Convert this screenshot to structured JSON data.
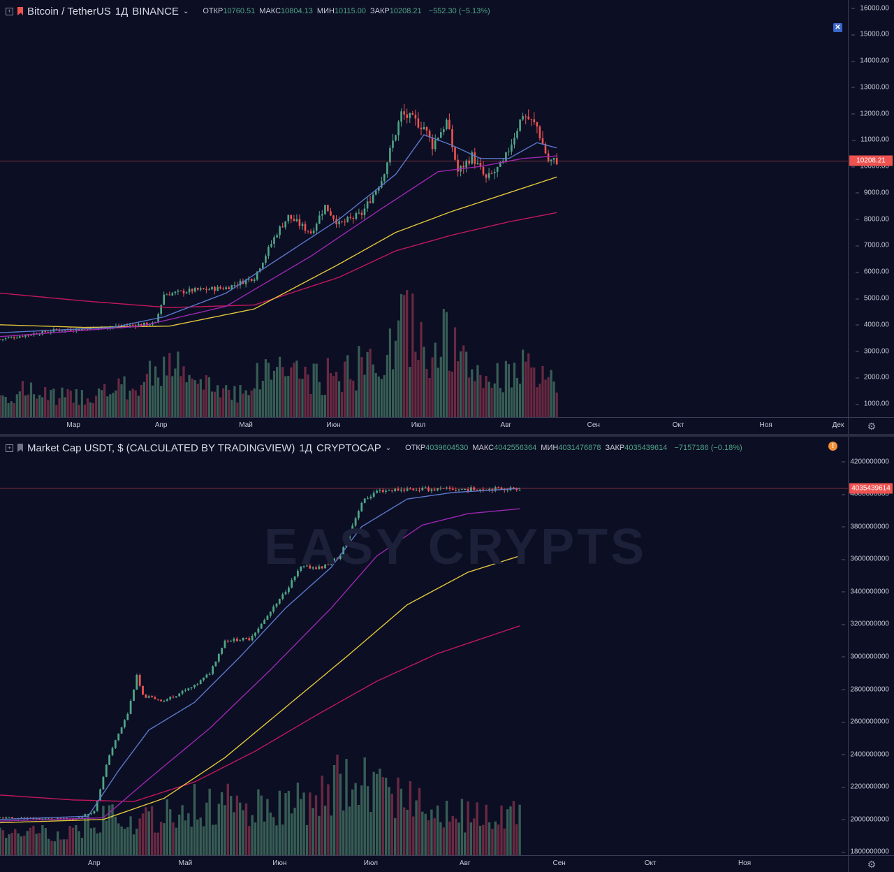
{
  "watermark": "EASY CRYPTS",
  "chart_data": [
    {
      "type": "candlestick",
      "title": "Bitcoin / TetherUS",
      "interval": "1Д",
      "exchange": "BINANCE",
      "ohlc": {
        "open_label": "ОТКР",
        "open": "10760.51",
        "high_label": "МАКС",
        "high": "10804.13",
        "low_label": "МИН",
        "low": "10115.00",
        "close_label": "ЗАКР",
        "close": "10208.21",
        "change": "−552.30 (−5.13%)"
      },
      "last_price": "10208.21",
      "ylim": [
        500,
        16200
      ],
      "yticks": [
        "16000.00",
        "15000.00",
        "14000.00",
        "13000.00",
        "12000.00",
        "11000.00",
        "10000.00",
        "9000.00",
        "8000.00",
        "7000.00",
        "6000.00",
        "5000.00",
        "4000.00",
        "3000.00",
        "2000.00",
        "1000.00"
      ],
      "ytick_values": [
        16000,
        15000,
        14000,
        13000,
        12000,
        11000,
        10000,
        9000,
        8000,
        7000,
        6000,
        5000,
        4000,
        3000,
        2000,
        1000
      ],
      "xticks": [
        "Мар",
        "Апр",
        "Май",
        "Июн",
        "Июл",
        "Авг",
        "Сен",
        "Окт",
        "Ноя",
        "Дек"
      ],
      "x_range_days": [
        0,
        300
      ],
      "xtick_days": [
        26,
        57,
        87,
        118,
        148,
        179,
        210,
        240,
        271,
        301
      ],
      "last_day": 197,
      "price_keypoints": [
        [
          0,
          3450
        ],
        [
          20,
          3800
        ],
        [
          30,
          3850
        ],
        [
          55,
          4050
        ],
        [
          58,
          5150
        ],
        [
          68,
          5300
        ],
        [
          80,
          5400
        ],
        [
          90,
          5800
        ],
        [
          98,
          7500
        ],
        [
          102,
          8100
        ],
        [
          110,
          7500
        ],
        [
          115,
          8500
        ],
        [
          120,
          7800
        ],
        [
          128,
          8200
        ],
        [
          135,
          9500
        ],
        [
          142,
          12000
        ],
        [
          147,
          11700
        ],
        [
          150,
          11500
        ],
        [
          153,
          10800
        ],
        [
          158,
          11700
        ],
        [
          162,
          9800
        ],
        [
          167,
          10400
        ],
        [
          172,
          9500
        ],
        [
          178,
          10100
        ],
        [
          185,
          12000
        ],
        [
          190,
          11500
        ],
        [
          194,
          10200
        ],
        [
          197,
          10208
        ]
      ],
      "ma_fast": [
        [
          0,
          3700
        ],
        [
          40,
          3900
        ],
        [
          58,
          4300
        ],
        [
          80,
          5200
        ],
        [
          100,
          6600
        ],
        [
          120,
          8000
        ],
        [
          140,
          9700
        ],
        [
          150,
          11200
        ],
        [
          160,
          10800
        ],
        [
          170,
          10300
        ],
        [
          180,
          10300
        ],
        [
          190,
          10900
        ],
        [
          197,
          10700
        ]
      ],
      "ma_mid": [
        [
          0,
          3550
        ],
        [
          50,
          3950
        ],
        [
          80,
          4700
        ],
        [
          110,
          6600
        ],
        [
          135,
          8400
        ],
        [
          155,
          9800
        ],
        [
          170,
          10000
        ],
        [
          185,
          10300
        ],
        [
          197,
          10400
        ]
      ],
      "ma_slow": [
        [
          0,
          4000
        ],
        [
          30,
          3900
        ],
        [
          60,
          3950
        ],
        [
          90,
          4600
        ],
        [
          120,
          6300
        ],
        [
          140,
          7500
        ],
        [
          160,
          8300
        ],
        [
          180,
          9000
        ],
        [
          197,
          9600
        ]
      ],
      "ma_long": [
        [
          0,
          5200
        ],
        [
          30,
          4900
        ],
        [
          60,
          4650
        ],
        [
          90,
          4750
        ],
        [
          120,
          5800
        ],
        [
          140,
          6800
        ],
        [
          160,
          7400
        ],
        [
          180,
          7900
        ],
        [
          197,
          8250
        ]
      ],
      "volume_profile": [
        [
          0,
          0.2
        ],
        [
          10,
          0.25
        ],
        [
          20,
          0.2
        ],
        [
          30,
          0.2
        ],
        [
          40,
          0.25
        ],
        [
          50,
          0.3
        ],
        [
          58,
          0.55
        ],
        [
          70,
          0.3
        ],
        [
          85,
          0.25
        ],
        [
          95,
          0.45
        ],
        [
          100,
          0.5
        ],
        [
          110,
          0.35
        ],
        [
          125,
          0.45
        ],
        [
          138,
          0.6
        ],
        [
          143,
          0.95
        ],
        [
          150,
          0.65
        ],
        [
          158,
          0.75
        ],
        [
          165,
          0.45
        ],
        [
          175,
          0.35
        ],
        [
          182,
          0.5
        ],
        [
          190,
          0.38
        ],
        [
          197,
          0.3
        ]
      ]
    },
    {
      "type": "candlestick",
      "title": "Market Cap USDT, $ (CALCULATED BY TRADINGVIEW)",
      "interval": "1Д",
      "exchange": "CRYPTOCAP",
      "ohlc": {
        "open_label": "ОТКР",
        "open": "4039604530",
        "high_label": "МАКС",
        "high": "4042556364",
        "low_label": "МИН",
        "low": "4031476878",
        "close_label": "ЗАКР",
        "close": "4035439614",
        "change": "−7157186 (−0.18%)"
      },
      "last_price": "4035439614",
      "ylim": [
        1780000000,
        4250000000
      ],
      "yticks": [
        "4200000000",
        "4000000000",
        "3800000000",
        "3600000000",
        "3400000000",
        "3200000000",
        "3000000000",
        "2800000000",
        "2600000000",
        "2400000000",
        "2200000000",
        "2000000000",
        "1800000000"
      ],
      "ytick_values": [
        4200000000,
        4000000000,
        3800000000,
        3600000000,
        3400000000,
        3200000000,
        3000000000,
        2800000000,
        2600000000,
        2400000000,
        2200000000,
        2000000000,
        1800000000
      ],
      "xticks": [
        "Апр",
        "Май",
        "Июн",
        "Июл",
        "Авг",
        "Сен",
        "Окт",
        "Ноя"
      ],
      "x_range_days": [
        26,
        305
      ],
      "xtick_days": [
        57,
        87,
        118,
        148,
        179,
        210,
        240,
        271
      ],
      "last_day": 197,
      "price_keypoints": [
        [
          26,
          2010000000
        ],
        [
          50,
          2000000000
        ],
        [
          57,
          2050000000
        ],
        [
          62,
          2400000000
        ],
        [
          68,
          2650000000
        ],
        [
          71,
          2880000000
        ],
        [
          73,
          2760000000
        ],
        [
          80,
          2730000000
        ],
        [
          90,
          2820000000
        ],
        [
          95,
          2900000000
        ],
        [
          100,
          3100000000
        ],
        [
          108,
          3110000000
        ],
        [
          112,
          3200000000
        ],
        [
          118,
          3350000000
        ],
        [
          125,
          3550000000
        ],
        [
          132,
          3550000000
        ],
        [
          138,
          3620000000
        ],
        [
          145,
          3950000000
        ],
        [
          150,
          4020000000
        ],
        [
          160,
          4030000000
        ],
        [
          170,
          4030000000
        ],
        [
          180,
          4030000000
        ],
        [
          197,
          4035000000
        ]
      ],
      "ma_fast": [
        [
          26,
          2000000000
        ],
        [
          55,
          2020000000
        ],
        [
          65,
          2300000000
        ],
        [
          75,
          2550000000
        ],
        [
          90,
          2720000000
        ],
        [
          105,
          3000000000
        ],
        [
          120,
          3300000000
        ],
        [
          135,
          3550000000
        ],
        [
          145,
          3800000000
        ],
        [
          160,
          3970000000
        ],
        [
          175,
          4010000000
        ],
        [
          197,
          4035000000
        ]
      ],
      "ma_mid": [
        [
          26,
          1990000000
        ],
        [
          60,
          2010000000
        ],
        [
          75,
          2250000000
        ],
        [
          95,
          2560000000
        ],
        [
          115,
          2920000000
        ],
        [
          135,
          3300000000
        ],
        [
          150,
          3620000000
        ],
        [
          165,
          3810000000
        ],
        [
          180,
          3880000000
        ],
        [
          197,
          3910000000
        ]
      ],
      "ma_slow": [
        [
          26,
          1980000000
        ],
        [
          60,
          2000000000
        ],
        [
          80,
          2130000000
        ],
        [
          100,
          2380000000
        ],
        [
          120,
          2690000000
        ],
        [
          140,
          3000000000
        ],
        [
          160,
          3320000000
        ],
        [
          180,
          3520000000
        ],
        [
          197,
          3620000000
        ]
      ],
      "ma_long": [
        [
          26,
          2150000000
        ],
        [
          50,
          2120000000
        ],
        [
          70,
          2110000000
        ],
        [
          90,
          2230000000
        ],
        [
          110,
          2420000000
        ],
        [
          130,
          2640000000
        ],
        [
          150,
          2850000000
        ],
        [
          170,
          3020000000
        ],
        [
          197,
          3190000000
        ]
      ],
      "volume_profile": [
        [
          26,
          0.18
        ],
        [
          40,
          0.2
        ],
        [
          55,
          0.25
        ],
        [
          60,
          0.35
        ],
        [
          75,
          0.3
        ],
        [
          90,
          0.45
        ],
        [
          100,
          0.5
        ],
        [
          110,
          0.45
        ],
        [
          125,
          0.45
        ],
        [
          135,
          0.55
        ],
        [
          140,
          0.75
        ],
        [
          150,
          0.55
        ],
        [
          160,
          0.5
        ],
        [
          170,
          0.4
        ],
        [
          180,
          0.35
        ],
        [
          190,
          0.38
        ],
        [
          197,
          0.35
        ]
      ]
    }
  ]
}
